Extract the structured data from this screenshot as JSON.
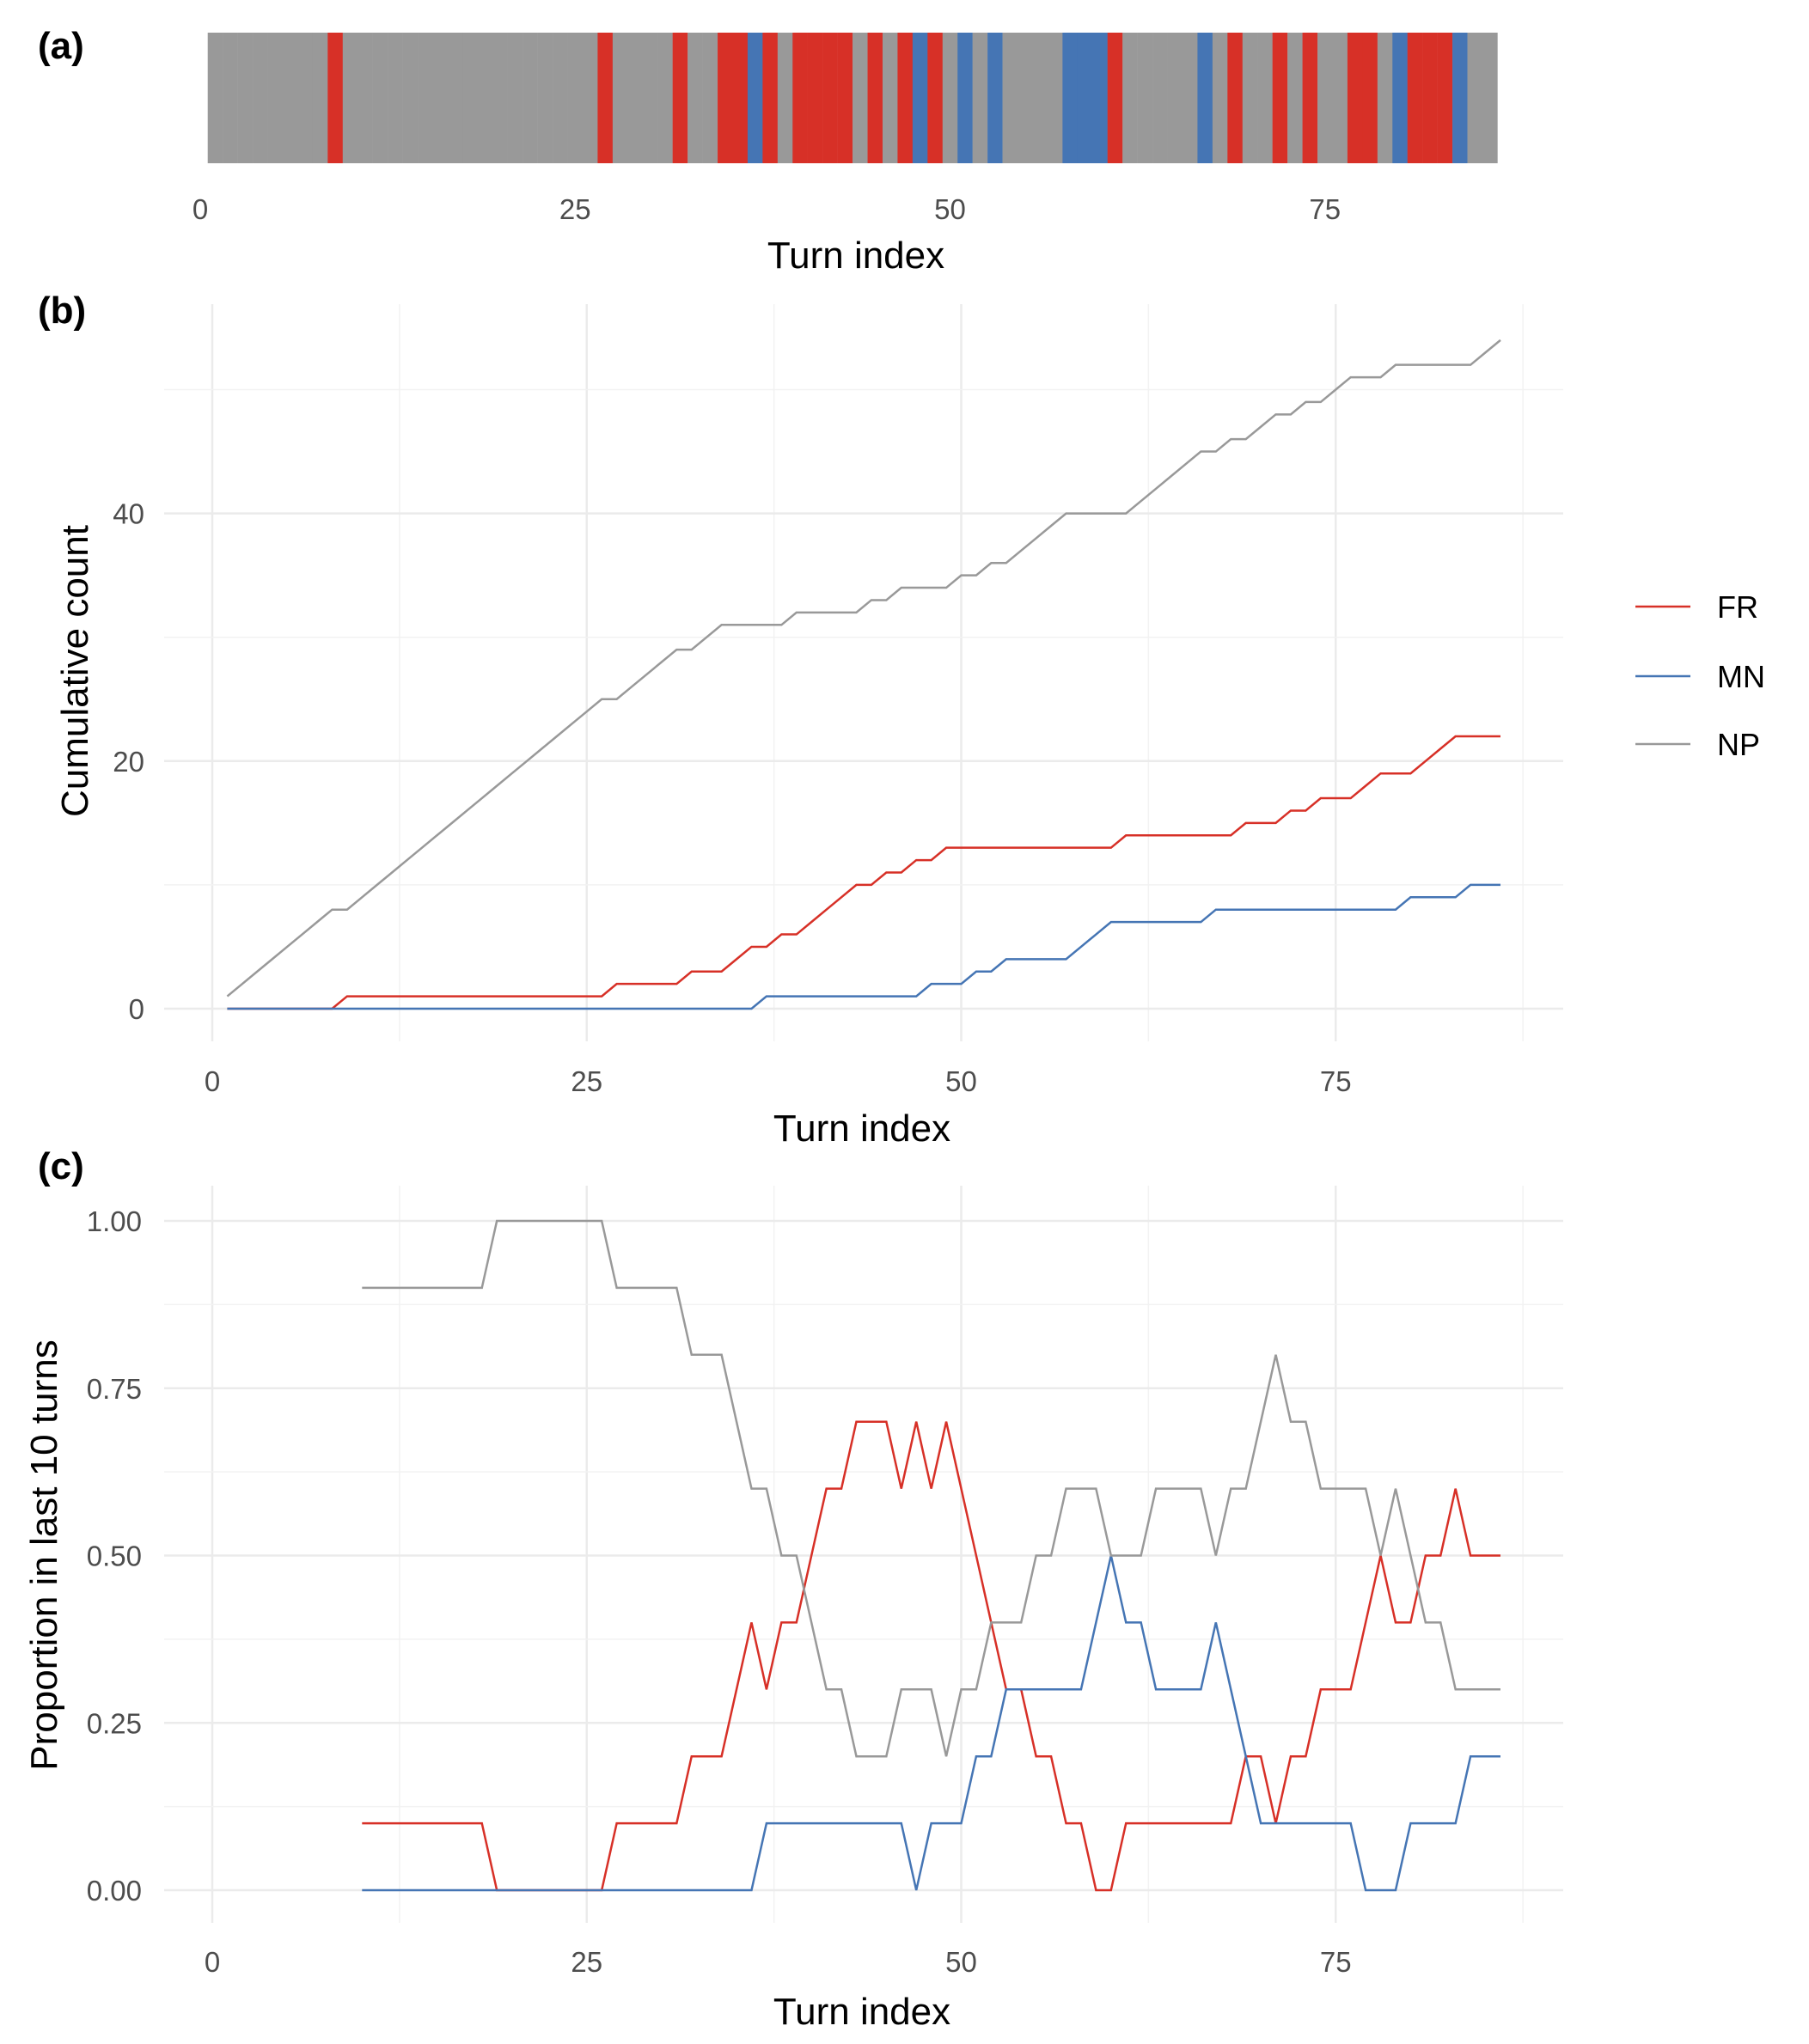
{
  "chart_data": [
    {
      "panel_label": "(a)",
      "type": "heatmap",
      "x_label": "Turn index",
      "x_ticks": [
        "0",
        "25",
        "50",
        "75"
      ],
      "colors": {
        "FR": "#d73027",
        "MN": "#4575b4",
        "NP": "#999999"
      },
      "turn_categories": [
        "NP",
        "NP",
        "NP",
        "NP",
        "NP",
        "NP",
        "NP",
        "NP",
        "FR",
        "NP",
        "NP",
        "NP",
        "NP",
        "NP",
        "NP",
        "NP",
        "NP",
        "NP",
        "NP",
        "NP",
        "NP",
        "NP",
        "NP",
        "NP",
        "NP",
        "NP",
        "FR",
        "NP",
        "NP",
        "NP",
        "NP",
        "FR",
        "NP",
        "NP",
        "FR",
        "FR",
        "MN",
        "FR",
        "NP",
        "FR",
        "FR",
        "FR",
        "FR",
        "NP",
        "FR",
        "NP",
        "FR",
        "MN",
        "FR",
        "NP",
        "MN",
        "NP",
        "MN",
        "NP",
        "NP",
        "NP",
        "NP",
        "MN",
        "MN",
        "MN",
        "FR",
        "NP",
        "NP",
        "NP",
        "NP",
        "NP",
        "MN",
        "NP",
        "FR",
        "NP",
        "NP",
        "FR",
        "NP",
        "FR",
        "NP",
        "NP",
        "FR",
        "FR",
        "NP",
        "MN",
        "FR",
        "FR",
        "FR",
        "MN",
        "NP",
        "NP"
      ]
    },
    {
      "panel_label": "(b)",
      "type": "line",
      "x_label": "Turn index",
      "y_label": "Cumulative count",
      "x_ticks": [
        "0",
        "25",
        "50",
        "75"
      ],
      "y_ticks": [
        "0",
        "20",
        "40"
      ],
      "grid": true,
      "legend": {
        "position": "right",
        "entries": [
          "FR",
          "MN",
          "NP"
        ]
      },
      "series_colors": {
        "FR": "#d73027",
        "MN": "#4575b4",
        "NP": "#999999"
      }
    },
    {
      "panel_label": "(c)",
      "type": "line",
      "x_label": "Turn index",
      "y_label": "Proportion in last 10 turns",
      "x_ticks": [
        "0",
        "25",
        "50",
        "75"
      ],
      "y_ticks": [
        "0.00",
        "0.25",
        "0.50",
        "0.75",
        "1.00"
      ],
      "grid": true,
      "series_colors": {
        "FR": "#d73027",
        "MN": "#4575b4",
        "NP": "#999999"
      }
    }
  ]
}
